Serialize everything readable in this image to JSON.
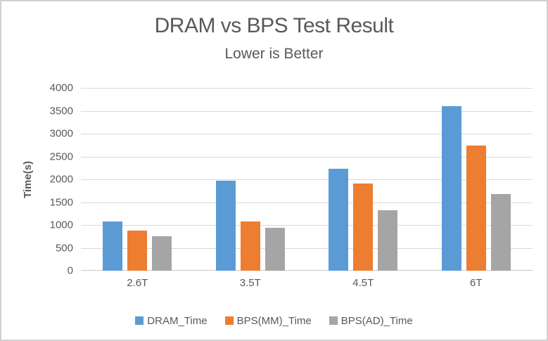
{
  "chart_data": {
    "type": "bar",
    "title": "DRAM vs BPS Test Result",
    "subtitle": "Lower is Better",
    "xlabel": "",
    "ylabel": "Time(s)",
    "categories": [
      "2.6T",
      "3.5T",
      "4.5T",
      "6T"
    ],
    "series": [
      {
        "name": "DRAM_Time",
        "color": "#5B9BD5",
        "values": [
          1080,
          1975,
          2230,
          3600
        ]
      },
      {
        "name": "BPS(MM)_Time",
        "color": "#ED7D31",
        "values": [
          870,
          1070,
          1910,
          2740
        ]
      },
      {
        "name": "BPS(AD)_Time",
        "color": "#A5A5A5",
        "values": [
          750,
          940,
          1330,
          1670
        ]
      }
    ],
    "ylim": [
      0,
      4000
    ],
    "ytick_step": 500,
    "grid": true,
    "legend_position": "bottom",
    "colors": {
      "text": "#595959",
      "gridline": "#D9D9D9",
      "axis_line": "#C9C9C9",
      "background": "#FFFFFF",
      "frame_border": "#D0D0D0"
    }
  }
}
